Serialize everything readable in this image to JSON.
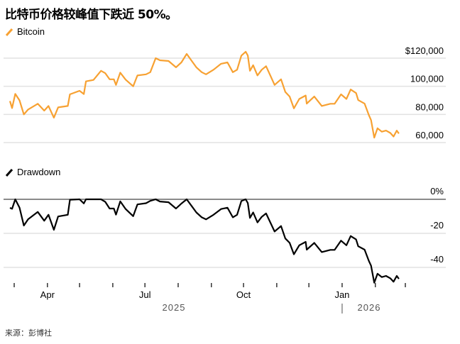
{
  "title": "比特币价格较峰值下跌近 50%。",
  "source": "来源：彭博社",
  "colors": {
    "bitcoin": "#f7a132",
    "drawdown": "#000000",
    "grid": "#e2e2e2",
    "zero_line": "#8a8a8a"
  },
  "chart_data": [
    {
      "type": "line",
      "name": "Bitcoin",
      "legend": "Bitcoin",
      "ylabel": "",
      "ylim": [
        55000,
        125000
      ],
      "yticks": [
        60000,
        80000,
        100000,
        120000
      ],
      "ytick_labels": [
        "60,000",
        "80,000",
        "100,000",
        "$120,000"
      ],
      "x_unit": "days since 2025-03-01",
      "x": [
        -4,
        -2,
        1,
        5,
        9,
        13,
        22,
        28,
        32,
        37,
        41,
        50,
        52,
        61,
        65,
        67,
        74,
        81,
        85,
        89,
        93,
        95,
        99,
        104,
        111,
        115,
        123,
        127,
        132,
        136,
        144,
        151,
        156,
        161,
        166,
        170,
        175,
        179,
        186,
        193,
        199,
        204,
        208,
        212,
        216,
        218,
        220,
        223,
        227,
        231,
        235,
        239,
        243,
        249,
        253,
        257,
        261,
        266,
        272,
        273,
        280,
        287,
        295,
        299,
        305,
        310,
        314,
        319,
        321,
        327,
        331,
        333,
        336,
        339,
        343,
        347,
        351,
        354,
        357,
        359
      ],
      "values": [
        89500,
        84500,
        94600,
        90000,
        80000,
        83500,
        87600,
        82700,
        86000,
        77700,
        85000,
        86000,
        94300,
        96800,
        94500,
        103500,
        104500,
        111000,
        109300,
        105000,
        105000,
        101000,
        109700,
        104700,
        100000,
        107700,
        108500,
        110000,
        120000,
        118500,
        118000,
        113500,
        117000,
        123000,
        117700,
        113500,
        110000,
        108500,
        111800,
        116000,
        117000,
        110000,
        111800,
        121800,
        124600,
        121800,
        111000,
        115000,
        107700,
        111800,
        114300,
        107700,
        101000,
        105000,
        96000,
        92700,
        84300,
        91000,
        93500,
        87700,
        92700,
        86000,
        87600,
        87600,
        94300,
        91000,
        97700,
        95200,
        90200,
        87700,
        79400,
        76000,
        63500,
        70200,
        67700,
        68500,
        66800,
        64300,
        68500,
        66400
      ]
    },
    {
      "type": "line",
      "name": "Drawdown",
      "legend": "Drawdown",
      "ylim": [
        -50,
        0
      ],
      "yticks": [
        0,
        -20,
        -40
      ],
      "ytick_labels": [
        "0%",
        "-20",
        "-40"
      ],
      "x_unit": "days since 2025-03-01",
      "x": [
        -4,
        -2,
        1,
        5,
        9,
        13,
        22,
        28,
        32,
        37,
        41,
        50,
        52,
        61,
        65,
        67,
        74,
        81,
        85,
        89,
        93,
        95,
        99,
        104,
        111,
        115,
        123,
        127,
        132,
        136,
        144,
        151,
        156,
        161,
        166,
        170,
        175,
        179,
        186,
        193,
        199,
        204,
        208,
        212,
        216,
        218,
        220,
        223,
        227,
        231,
        235,
        239,
        243,
        249,
        253,
        257,
        261,
        266,
        272,
        273,
        280,
        287,
        295,
        299,
        305,
        310,
        314,
        319,
        321,
        327,
        331,
        333,
        336,
        339,
        343,
        347,
        351,
        354,
        357,
        359
      ],
      "values": [
        -5,
        -5.6,
        0,
        -4.9,
        -15.4,
        -11.7,
        -7.4,
        -12.6,
        -9.1,
        -17.9,
        -10.1,
        -9.1,
        -0.3,
        0,
        -2.4,
        0,
        0,
        0,
        -1.5,
        -5.4,
        -5.4,
        -9,
        -1.2,
        -5.7,
        -9.9,
        -3,
        -2.3,
        -0.9,
        0,
        -1.3,
        -1.7,
        -5.4,
        -2.5,
        0,
        -4.3,
        -7.7,
        -10.6,
        -11.8,
        -9.1,
        -5.7,
        -4.9,
        -10.6,
        -9.1,
        -1,
        0,
        -2.2,
        -10.9,
        -7.7,
        -13.6,
        -10.3,
        -8.3,
        -13.6,
        -18.9,
        -15.7,
        -23,
        -25.6,
        -32.3,
        -27,
        -25,
        -29.6,
        -25.6,
        -31,
        -29.7,
        -29.7,
        -24.3,
        -27,
        -21.6,
        -23.6,
        -27.6,
        -29.6,
        -36.3,
        -39,
        -49,
        -43.7,
        -45.7,
        -45,
        -46.4,
        -48.4,
        -45,
        -46.7
      ]
    }
  ],
  "x_axis": {
    "month_tick_days": [
      0,
      31,
      61,
      92,
      122,
      153,
      184,
      214,
      245,
      275,
      306,
      337,
      365
    ],
    "labels": [
      {
        "day": 31,
        "text": "Apr"
      },
      {
        "day": 122,
        "text": "Jul"
      },
      {
        "day": 214,
        "text": "Oct"
      },
      {
        "day": 306,
        "text": "Jan"
      }
    ],
    "years": [
      {
        "text": "2025"
      },
      {
        "text": "2026"
      }
    ]
  }
}
